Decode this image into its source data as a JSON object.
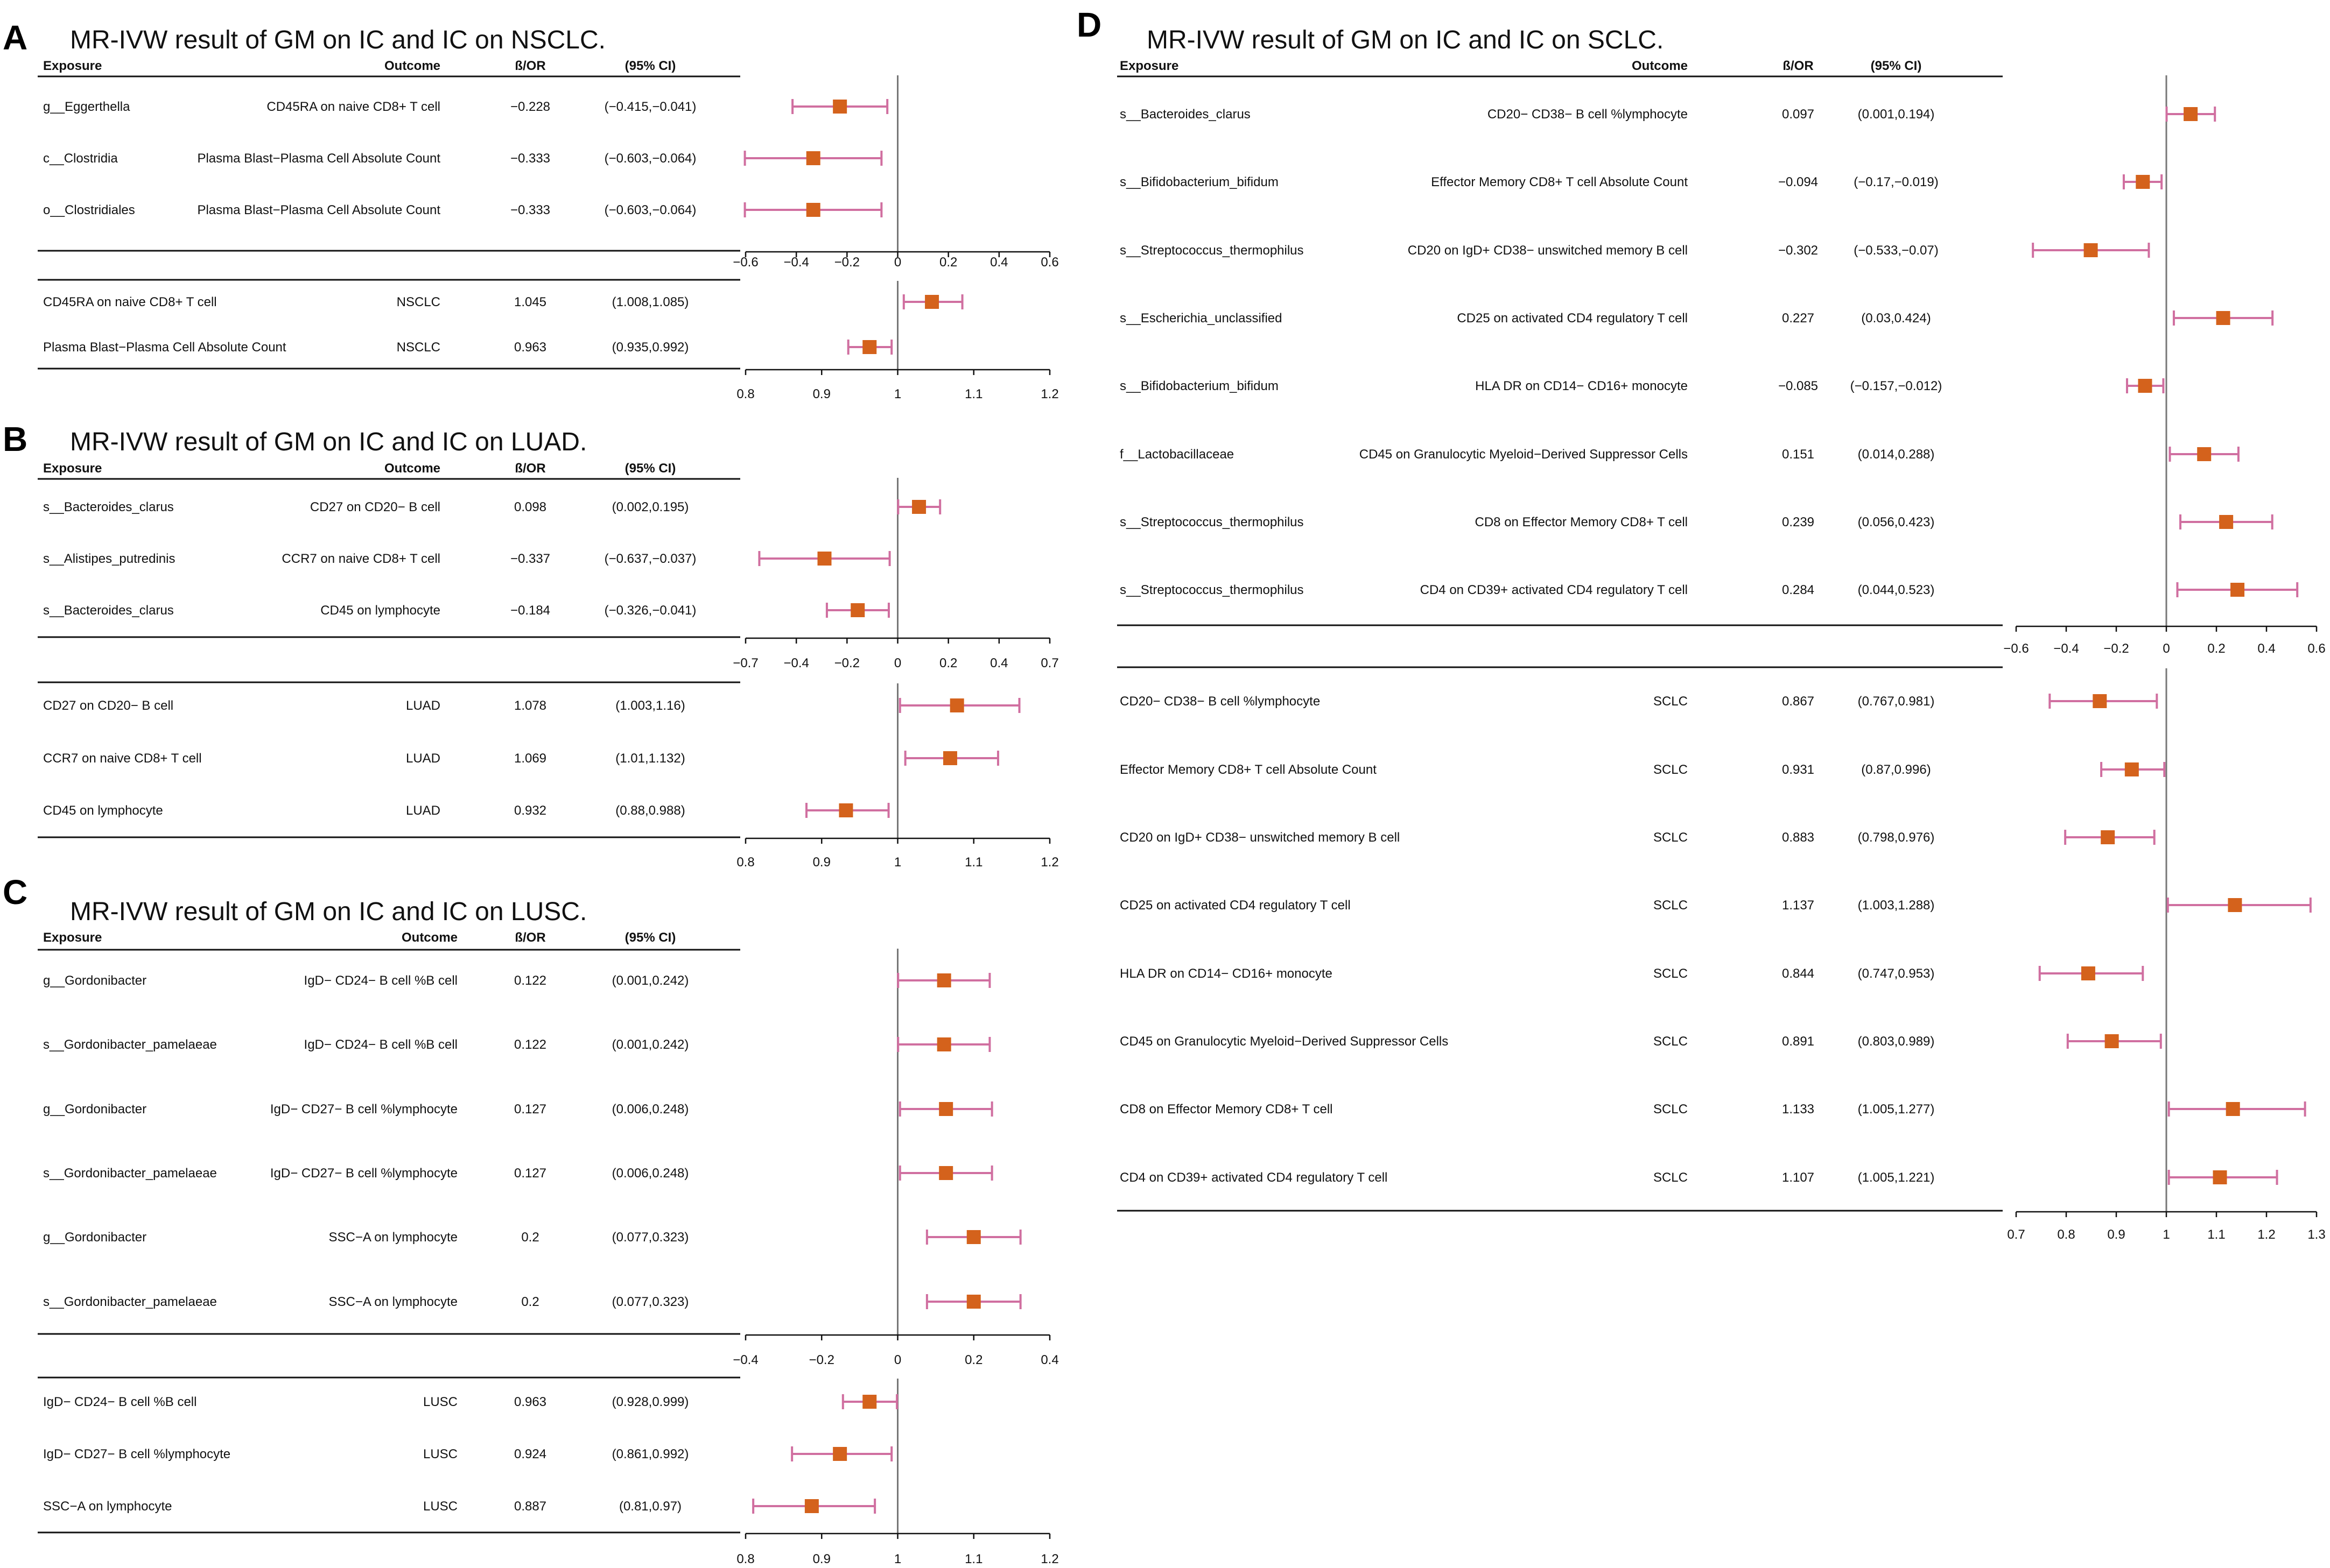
{
  "chart_data": [
    {
      "type": "forest",
      "panel": "A",
      "title": "MR-IVW result of GM on IC and IC on NSCLC.",
      "headers": {
        "exposure": "Exposure",
        "outcome": "Outcome",
        "estimate": "ß/OR",
        "ci": "(95% CI)"
      },
      "top": {
        "axis_ticks": [
          "−0.6",
          "−0.4",
          "−0.2",
          "0",
          "0.2",
          "0.4",
          "0.6"
        ],
        "xlim": [
          -0.6,
          0.6
        ],
        "ref": 0,
        "rows": [
          {
            "exposure": "g__Eggerthella",
            "outcome": "CD45RA on naive CD8+ T cell",
            "est_text": "−0.228",
            "ci_text": "(−0.415,−0.041)",
            "est": -0.228,
            "lo": -0.415,
            "hi": -0.041
          },
          {
            "exposure": "c__Clostridia",
            "outcome": "Plasma Blast−Plasma Cell Absolute Count",
            "est_text": "−0.333",
            "ci_text": "(−0.603,−0.064)",
            "est": -0.333,
            "lo": -0.603,
            "hi": -0.064
          },
          {
            "exposure": "o__Clostridiales",
            "outcome": "Plasma Blast−Plasma Cell Absolute Count",
            "est_text": "−0.333",
            "ci_text": "(−0.603,−0.064)",
            "est": -0.333,
            "lo": -0.603,
            "hi": -0.064
          }
        ]
      },
      "bottom": {
        "axis_ticks": [
          "0.8",
          "0.9",
          "1",
          "1.1",
          "1.2"
        ],
        "xlim": [
          0.8,
          1.2
        ],
        "ref": 1,
        "rows": [
          {
            "exposure": "CD45RA on naive CD8+ T cell",
            "outcome": "NSCLC",
            "est_text": "1.045",
            "ci_text": "(1.008,1.085)",
            "est": 1.045,
            "lo": 1.008,
            "hi": 1.085
          },
          {
            "exposure": "Plasma Blast−Plasma Cell Absolute Count",
            "outcome": "NSCLC",
            "est_text": "0.963",
            "ci_text": "(0.935,0.992)",
            "est": 0.963,
            "lo": 0.935,
            "hi": 0.992
          }
        ]
      }
    },
    {
      "type": "forest",
      "panel": "B",
      "title": "MR-IVW result of GM on IC and IC on LUAD.",
      "headers": {
        "exposure": "Exposure",
        "outcome": "Outcome",
        "estimate": "ß/OR",
        "ci": "(95% CI)"
      },
      "top": {
        "axis_ticks": [
          "−0.7",
          "−0.4",
          "−0.2",
          "0",
          "0.2",
          "0.4",
          "0.7"
        ],
        "xlim": [
          -0.7,
          0.7
        ],
        "ref": 0,
        "rows": [
          {
            "exposure": "s__Bacteroides_clarus",
            "outcome": "CD27 on CD20− B cell",
            "est_text": "0.098",
            "ci_text": "(0.002,0.195)",
            "est": 0.098,
            "lo": 0.002,
            "hi": 0.195
          },
          {
            "exposure": "s__Alistipes_putredinis",
            "outcome": "CCR7 on naive CD8+ T cell",
            "est_text": "−0.337",
            "ci_text": "(−0.637,−0.037)",
            "est": -0.337,
            "lo": -0.637,
            "hi": -0.037
          },
          {
            "exposure": "s__Bacteroides_clarus",
            "outcome": "CD45 on lymphocyte",
            "est_text": "−0.184",
            "ci_text": "(−0.326,−0.041)",
            "est": -0.184,
            "lo": -0.326,
            "hi": -0.041
          }
        ]
      },
      "bottom": {
        "axis_ticks": [
          "0.8",
          "0.9",
          "1",
          "1.1",
          "1.2"
        ],
        "xlim": [
          0.8,
          1.2
        ],
        "ref": 1,
        "rows": [
          {
            "exposure": "CD27 on CD20− B cell",
            "outcome": "LUAD",
            "est_text": "1.078",
            "ci_text": "(1.003,1.16)",
            "est": 1.078,
            "lo": 1.003,
            "hi": 1.16
          },
          {
            "exposure": "CCR7 on naive CD8+ T cell",
            "outcome": "LUAD",
            "est_text": "1.069",
            "ci_text": "(1.01,1.132)",
            "est": 1.069,
            "lo": 1.01,
            "hi": 1.132
          },
          {
            "exposure": "CD45 on lymphocyte",
            "outcome": "LUAD",
            "est_text": "0.932",
            "ci_text": "(0.88,0.988)",
            "est": 0.932,
            "lo": 0.88,
            "hi": 0.988
          }
        ]
      }
    },
    {
      "type": "forest",
      "panel": "C",
      "title": "MR-IVW result of GM on IC and IC on LUSC.",
      "headers": {
        "exposure": "Exposure",
        "outcome": "Outcome",
        "estimate": "ß/OR",
        "ci": "(95% CI)"
      },
      "top": {
        "axis_ticks": [
          "−0.4",
          "−0.2",
          "0",
          "0.2",
          "0.4"
        ],
        "xlim": [
          -0.4,
          0.4
        ],
        "ref": 0,
        "rows": [
          {
            "exposure": "g__Gordonibacter",
            "outcome": "IgD− CD24− B cell %B cell",
            "est_text": "0.122",
            "ci_text": "(0.001,0.242)",
            "est": 0.122,
            "lo": 0.001,
            "hi": 0.242
          },
          {
            "exposure": "s__Gordonibacter_pamelaeae",
            "outcome": "IgD− CD24− B cell %B cell",
            "est_text": "0.122",
            "ci_text": "(0.001,0.242)",
            "est": 0.122,
            "lo": 0.001,
            "hi": 0.242
          },
          {
            "exposure": "g__Gordonibacter",
            "outcome": "IgD− CD27− B cell %lymphocyte",
            "est_text": "0.127",
            "ci_text": "(0.006,0.248)",
            "est": 0.127,
            "lo": 0.006,
            "hi": 0.248
          },
          {
            "exposure": "s__Gordonibacter_pamelaeae",
            "outcome": "IgD− CD27− B cell %lymphocyte",
            "est_text": "0.127",
            "ci_text": "(0.006,0.248)",
            "est": 0.127,
            "lo": 0.006,
            "hi": 0.248
          },
          {
            "exposure": "g__Gordonibacter",
            "outcome": "SSC−A on lymphocyte",
            "est_text": "0.2",
            "ci_text": "(0.077,0.323)",
            "est": 0.2,
            "lo": 0.077,
            "hi": 0.323
          },
          {
            "exposure": "s__Gordonibacter_pamelaeae",
            "outcome": "SSC−A on lymphocyte",
            "est_text": "0.2",
            "ci_text": "(0.077,0.323)",
            "est": 0.2,
            "lo": 0.077,
            "hi": 0.323
          }
        ]
      },
      "bottom": {
        "axis_ticks": [
          "0.8",
          "0.9",
          "1",
          "1.1",
          "1.2"
        ],
        "xlim": [
          0.8,
          1.2
        ],
        "ref": 1,
        "rows": [
          {
            "exposure": "IgD− CD24− B cell %B cell",
            "outcome": "LUSC",
            "est_text": "0.963",
            "ci_text": "(0.928,0.999)",
            "est": 0.963,
            "lo": 0.928,
            "hi": 0.999
          },
          {
            "exposure": "IgD− CD27− B cell %lymphocyte",
            "outcome": "LUSC",
            "est_text": "0.924",
            "ci_text": "(0.861,0.992)",
            "est": 0.924,
            "lo": 0.861,
            "hi": 0.992
          },
          {
            "exposure": "SSC−A on lymphocyte",
            "outcome": "LUSC",
            "est_text": "0.887",
            "ci_text": "(0.81,0.97)",
            "est": 0.887,
            "lo": 0.81,
            "hi": 0.97
          }
        ]
      }
    },
    {
      "type": "forest",
      "panel": "D",
      "title": "MR-IVW result of GM on IC and IC on SCLC.",
      "headers": {
        "exposure": "Exposure",
        "outcome": "Outcome",
        "estimate": "ß/OR",
        "ci": "(95% CI)"
      },
      "top": {
        "axis_ticks": [
          "−0.6",
          "−0.4",
          "−0.2",
          "0",
          "0.2",
          "0.4",
          "0.6"
        ],
        "xlim": [
          -0.6,
          0.6
        ],
        "ref": 0,
        "rows": [
          {
            "exposure": "s__Bacteroides_clarus",
            "outcome": "CD20− CD38− B cell %lymphocyte",
            "est_text": "0.097",
            "ci_text": "(0.001,0.194)",
            "est": 0.097,
            "lo": 0.001,
            "hi": 0.194
          },
          {
            "exposure": "s__Bifidobacterium_bifidum",
            "outcome": "Effector Memory CD8+ T cell Absolute Count",
            "est_text": "−0.094",
            "ci_text": "(−0.17,−0.019)",
            "est": -0.094,
            "lo": -0.17,
            "hi": -0.019
          },
          {
            "exposure": "s__Streptococcus_thermophilus",
            "outcome": "CD20 on IgD+ CD38− unswitched memory B cell",
            "est_text": "−0.302",
            "ci_text": "(−0.533,−0.07)",
            "est": -0.302,
            "lo": -0.533,
            "hi": -0.07
          },
          {
            "exposure": "s__Escherichia_unclassified",
            "outcome": "CD25 on activated CD4 regulatory T cell",
            "est_text": "0.227",
            "ci_text": "(0.03,0.424)",
            "est": 0.227,
            "lo": 0.03,
            "hi": 0.424
          },
          {
            "exposure": "s__Bifidobacterium_bifidum",
            "outcome": "HLA DR on CD14− CD16+ monocyte",
            "est_text": "−0.085",
            "ci_text": "(−0.157,−0.012)",
            "est": -0.085,
            "lo": -0.157,
            "hi": -0.012
          },
          {
            "exposure": "f__Lactobacillaceae",
            "outcome": "CD45 on Granulocytic Myeloid−Derived Suppressor Cells",
            "est_text": "0.151",
            "ci_text": "(0.014,0.288)",
            "est": 0.151,
            "lo": 0.014,
            "hi": 0.288
          },
          {
            "exposure": "s__Streptococcus_thermophilus",
            "outcome": "CD8 on Effector Memory CD8+ T cell",
            "est_text": "0.239",
            "ci_text": "(0.056,0.423)",
            "est": 0.239,
            "lo": 0.056,
            "hi": 0.423
          },
          {
            "exposure": "s__Streptococcus_thermophilus",
            "outcome": "CD4 on CD39+ activated CD4 regulatory T cell",
            "est_text": "0.284",
            "ci_text": "(0.044,0.523)",
            "est": 0.284,
            "lo": 0.044,
            "hi": 0.523
          }
        ]
      },
      "bottom": {
        "axis_ticks": [
          "0.7",
          "0.8",
          "0.9",
          "1",
          "1.1",
          "1.2",
          "1.3"
        ],
        "xlim": [
          0.7,
          1.3
        ],
        "ref": 1,
        "rows": [
          {
            "exposure": "CD20− CD38− B cell %lymphocyte",
            "outcome": "SCLC",
            "est_text": "0.867",
            "ci_text": "(0.767,0.981)",
            "est": 0.867,
            "lo": 0.767,
            "hi": 0.981
          },
          {
            "exposure": "Effector Memory CD8+ T cell Absolute Count",
            "outcome": "SCLC",
            "est_text": "0.931",
            "ci_text": "(0.87,0.996)",
            "est": 0.931,
            "lo": 0.87,
            "hi": 0.996
          },
          {
            "exposure": "CD20 on IgD+ CD38− unswitched memory B cell",
            "outcome": "SCLC",
            "est_text": "0.883",
            "ci_text": "(0.798,0.976)",
            "est": 0.883,
            "lo": 0.798,
            "hi": 0.976
          },
          {
            "exposure": "CD25 on activated CD4 regulatory T cell",
            "outcome": "SCLC",
            "est_text": "1.137",
            "ci_text": "(1.003,1.288)",
            "est": 1.137,
            "lo": 1.003,
            "hi": 1.288
          },
          {
            "exposure": "HLA DR on CD14− CD16+ monocyte",
            "outcome": "SCLC",
            "est_text": "0.844",
            "ci_text": "(0.747,0.953)",
            "est": 0.844,
            "lo": 0.747,
            "hi": 0.953
          },
          {
            "exposure": "CD45 on Granulocytic Myeloid−Derived Suppressor Cells",
            "outcome": "SCLC",
            "est_text": "0.891",
            "ci_text": "(0.803,0.989)",
            "est": 0.891,
            "lo": 0.803,
            "hi": 0.989
          },
          {
            "exposure": "CD8 on Effector Memory CD8+ T cell",
            "outcome": "SCLC",
            "est_text": "1.133",
            "ci_text": "(1.005,1.277)",
            "est": 1.133,
            "lo": 1.005,
            "hi": 1.277
          },
          {
            "exposure": "CD4 on CD39+ activated CD4 regulatory T cell",
            "outcome": "SCLC",
            "est_text": "1.107",
            "ci_text": "(1.005,1.221)",
            "est": 1.107,
            "lo": 1.005,
            "hi": 1.221
          }
        ]
      }
    }
  ],
  "colors": {
    "point": "#d4621c",
    "ci": "#d06fa0",
    "rule": "#111111",
    "ref": "#777777"
  }
}
